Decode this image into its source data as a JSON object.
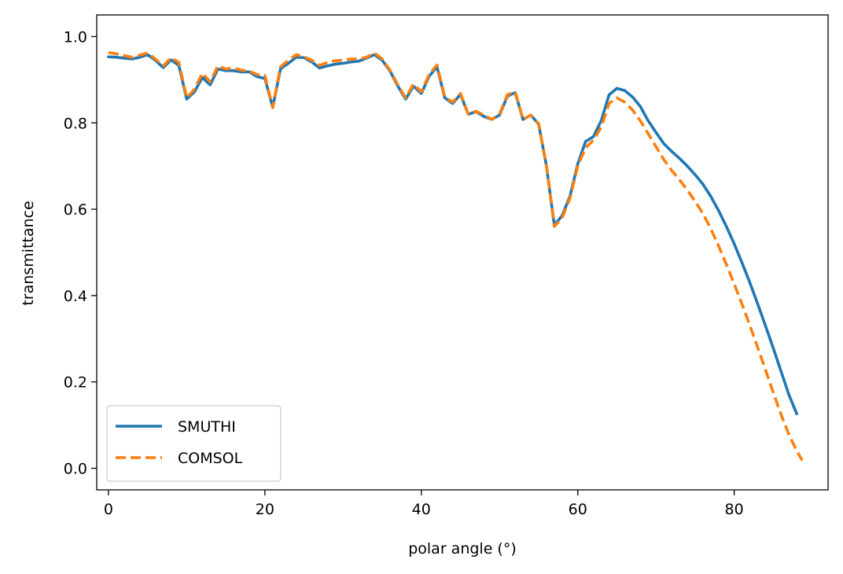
{
  "chart_data": {
    "type": "line",
    "xlabel": "polar angle (°)",
    "ylabel": "transmittance",
    "xlim": [
      -1.5,
      92
    ],
    "ylim": [
      -0.05,
      1.05
    ],
    "xticks": [
      0,
      20,
      40,
      60,
      80
    ],
    "yticks": [
      0.0,
      0.2,
      0.4,
      0.6,
      0.8,
      1.0
    ],
    "xtick_labels": [
      "0",
      "20",
      "40",
      "60",
      "80"
    ],
    "ytick_labels": [
      "0.0",
      "0.2",
      "0.4",
      "0.6",
      "0.8",
      "1.0"
    ],
    "grid": false,
    "legend_position": "lower-left",
    "series": [
      {
        "name": "SMUTHI",
        "color": "#1f77b4",
        "style": "solid",
        "x": [
          0,
          1,
          2,
          3,
          4,
          5,
          6,
          7,
          8,
          9,
          10,
          11,
          12,
          13,
          14,
          15,
          16,
          17,
          18,
          19,
          20,
          21,
          22,
          23,
          24,
          25,
          26,
          27,
          28,
          29,
          30,
          31,
          32,
          33,
          34,
          35,
          36,
          37,
          38,
          39,
          40,
          41,
          42,
          43,
          44,
          45,
          46,
          47,
          48,
          49,
          50,
          51,
          52,
          53,
          54,
          55,
          56,
          57,
          58,
          59,
          60,
          61,
          62,
          63,
          64,
          65,
          66,
          67,
          68,
          69,
          70,
          71,
          72,
          73,
          74,
          75,
          76,
          77,
          78,
          79,
          80,
          81,
          82,
          83,
          84,
          85,
          86,
          87,
          88
        ],
        "y": [
          0.953,
          0.952,
          0.95,
          0.948,
          0.952,
          0.958,
          0.945,
          0.928,
          0.946,
          0.933,
          0.855,
          0.872,
          0.905,
          0.888,
          0.925,
          0.921,
          0.921,
          0.918,
          0.918,
          0.907,
          0.903,
          0.836,
          0.925,
          0.938,
          0.952,
          0.951,
          0.941,
          0.927,
          0.932,
          0.936,
          0.938,
          0.941,
          0.943,
          0.95,
          0.958,
          0.945,
          0.92,
          0.885,
          0.855,
          0.885,
          0.868,
          0.908,
          0.93,
          0.858,
          0.845,
          0.866,
          0.82,
          0.826,
          0.815,
          0.808,
          0.818,
          0.862,
          0.87,
          0.808,
          0.818,
          0.797,
          0.7,
          0.563,
          0.585,
          0.63,
          0.705,
          0.757,
          0.768,
          0.805,
          0.865,
          0.88,
          0.875,
          0.86,
          0.838,
          0.805,
          0.778,
          0.752,
          0.734,
          0.718,
          0.7,
          0.68,
          0.658,
          0.63,
          0.597,
          0.56,
          0.52,
          0.476,
          0.43,
          0.381,
          0.33,
          0.278,
          0.224,
          0.17,
          0.126
        ]
      },
      {
        "name": "COMSOL",
        "color": "#ff7f0e",
        "style": "dashed",
        "x": [
          0,
          1,
          2,
          3,
          4,
          5,
          6,
          7,
          8,
          9,
          10,
          11,
          12,
          13,
          14,
          15,
          16,
          17,
          18,
          19,
          20,
          21,
          22,
          23,
          24,
          25,
          26,
          27,
          28,
          29,
          30,
          31,
          32,
          33,
          34,
          35,
          36,
          37,
          38,
          39,
          40,
          41,
          42,
          43,
          44,
          45,
          46,
          47,
          48,
          49,
          50,
          51,
          52,
          53,
          54,
          55,
          56,
          57,
          58,
          59,
          60,
          61,
          62,
          63,
          64,
          65,
          66,
          67,
          68,
          69,
          70,
          71,
          72,
          73,
          74,
          75,
          76,
          77,
          78,
          79,
          80,
          81,
          82,
          83,
          84,
          85,
          86,
          87,
          88,
          88.7
        ],
        "y": [
          0.963,
          0.96,
          0.956,
          0.952,
          0.957,
          0.962,
          0.948,
          0.932,
          0.951,
          0.94,
          0.858,
          0.878,
          0.915,
          0.895,
          0.932,
          0.925,
          0.927,
          0.922,
          0.92,
          0.912,
          0.91,
          0.835,
          0.93,
          0.945,
          0.958,
          0.953,
          0.945,
          0.933,
          0.94,
          0.944,
          0.945,
          0.948,
          0.948,
          0.952,
          0.962,
          0.948,
          0.922,
          0.888,
          0.858,
          0.89,
          0.872,
          0.912,
          0.934,
          0.86,
          0.848,
          0.868,
          0.82,
          0.827,
          0.818,
          0.808,
          0.82,
          0.865,
          0.872,
          0.808,
          0.818,
          0.798,
          0.7,
          0.56,
          0.58,
          0.625,
          0.7,
          0.742,
          0.76,
          0.79,
          0.845,
          0.858,
          0.848,
          0.83,
          0.805,
          0.775,
          0.745,
          0.715,
          0.69,
          0.668,
          0.645,
          0.618,
          0.59,
          0.555,
          0.515,
          0.472,
          0.427,
          0.38,
          0.331,
          0.28,
          0.228,
          0.175,
          0.124,
          0.078,
          0.04,
          0.018
        ]
      }
    ]
  }
}
